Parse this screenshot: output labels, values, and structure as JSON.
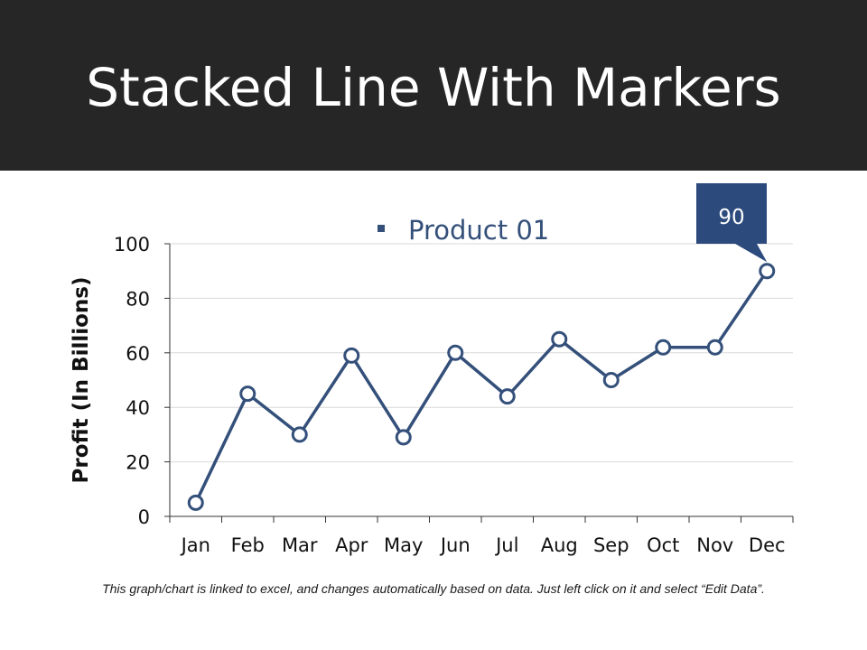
{
  "slide": {
    "title": "Stacked Line With Markers",
    "footnote": "This graph/chart is linked to excel, and changes automatically based on data. Just left click on it and select “Edit Data”."
  },
  "colors": {
    "header_bg": "#262626",
    "series": "#34507a",
    "callout": "#2c4a7c",
    "grid": "#d9d9d9"
  },
  "chart_data": {
    "type": "line",
    "title": "",
    "xlabel": "",
    "ylabel": "Profit (In Billions)",
    "categories": [
      "Jan",
      "Feb",
      "Mar",
      "Apr",
      "May",
      "Jun",
      "Jul",
      "Aug",
      "Sep",
      "Oct",
      "Nov",
      "Dec"
    ],
    "series": [
      {
        "name": "Product 01",
        "values": [
          5,
          45,
          30,
          59,
          29,
          60,
          44,
          65,
          50,
          62,
          62,
          90
        ]
      }
    ],
    "ylim": [
      0,
      100
    ],
    "yticks": [
      "0",
      "20",
      "40",
      "60",
      "80",
      "100"
    ],
    "grid": true,
    "legend": "top-center",
    "callout": {
      "category": "Dec",
      "label": "90"
    }
  }
}
